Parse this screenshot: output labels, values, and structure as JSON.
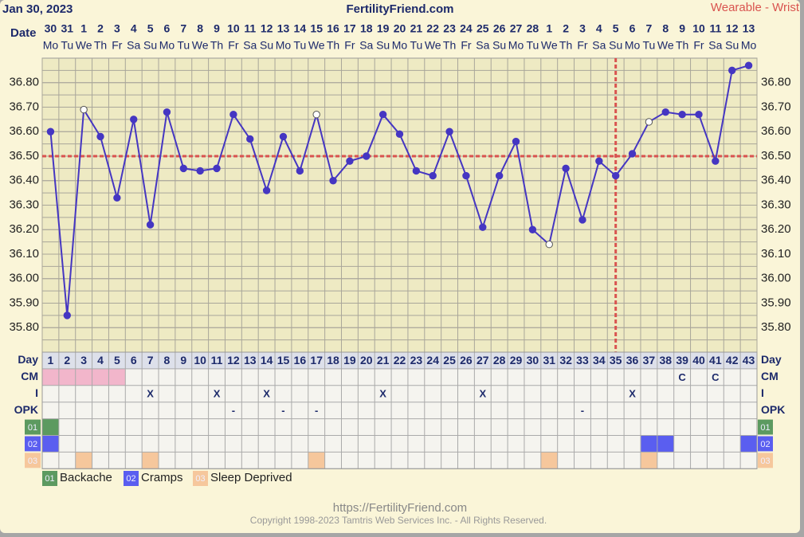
{
  "chart_data": {
    "type": "line",
    "title": "FertilityFriend.com",
    "date": "Jan 30, 2023",
    "source": "Wearable - Wrist",
    "x_label": "Date",
    "dates": [
      "30",
      "31",
      "1",
      "2",
      "3",
      "4",
      "5",
      "6",
      "7",
      "8",
      "9",
      "10",
      "11",
      "12",
      "13",
      "14",
      "15",
      "16",
      "17",
      "18",
      "19",
      "20",
      "21",
      "22",
      "23",
      "24",
      "25",
      "26",
      "27",
      "28",
      "1",
      "2",
      "3",
      "4",
      "5",
      "6",
      "7",
      "8",
      "9",
      "10",
      "11",
      "12",
      "13"
    ],
    "weekdays": [
      "Mo",
      "Tu",
      "We",
      "Th",
      "Fr",
      "Sa",
      "Su",
      "Mo",
      "Tu",
      "We",
      "Th",
      "Fr",
      "Sa",
      "Su",
      "Mo",
      "Tu",
      "We",
      "Th",
      "Fr",
      "Sa",
      "Su",
      "Mo",
      "Tu",
      "We",
      "Th",
      "Fr",
      "Sa",
      "Su",
      "Mo",
      "Tu",
      "We",
      "Th",
      "Fr",
      "Sa",
      "Su",
      "Mo",
      "Tu",
      "We",
      "Th",
      "Fr",
      "Sa",
      "Su",
      "Mo"
    ],
    "values": [
      36.6,
      35.85,
      36.69,
      36.58,
      36.33,
      36.65,
      36.22,
      36.68,
      36.45,
      36.44,
      36.45,
      36.67,
      36.57,
      36.36,
      36.58,
      36.44,
      36.67,
      36.4,
      36.48,
      36.5,
      36.67,
      36.59,
      36.44,
      36.42,
      36.6,
      36.42,
      36.21,
      36.42,
      36.56,
      36.2,
      36.14,
      36.45,
      36.24,
      36.48,
      36.42,
      36.51,
      36.64,
      36.68,
      36.67,
      36.67,
      36.48,
      36.85,
      36.87
    ],
    "hollow_points": [
      2,
      16,
      30,
      36
    ],
    "color": "#4536c2",
    "coverline": 36.5,
    "coverline_color": "#d9534f",
    "ovulation_index": 34,
    "ylim": [
      35.7,
      36.9
    ],
    "yticks": [
      {
        "value": 35.8,
        "label": "35.80"
      },
      {
        "value": 35.9,
        "label": "35.90"
      },
      {
        "value": 36.0,
        "label": "36.00"
      },
      {
        "value": 36.1,
        "label": "36.10"
      },
      {
        "value": 36.2,
        "label": "36.20"
      },
      {
        "value": 36.3,
        "label": "36.30"
      },
      {
        "value": 36.4,
        "label": "36.40"
      },
      {
        "value": 36.5,
        "label": "36.50"
      },
      {
        "value": 36.6,
        "label": "36.60"
      },
      {
        "value": 36.7,
        "label": "36.70"
      },
      {
        "value": 36.8,
        "label": "36.80"
      }
    ],
    "grid": true
  },
  "table": {
    "day_label": "Day",
    "days": [
      1,
      2,
      3,
      4,
      5,
      6,
      7,
      8,
      9,
      10,
      11,
      12,
      13,
      14,
      15,
      16,
      17,
      18,
      19,
      20,
      21,
      22,
      23,
      24,
      25,
      26,
      27,
      28,
      29,
      30,
      31,
      32,
      33,
      34,
      35,
      36,
      37,
      38,
      39,
      40,
      41,
      42,
      43
    ],
    "rows": [
      {
        "label": "CM",
        "fill_color": "#f2b6cb",
        "filled_days": [
          1,
          2,
          3,
          4,
          5
        ],
        "marks": [
          {
            "day": 39,
            "text": "C"
          },
          {
            "day": 41,
            "text": "C"
          }
        ]
      },
      {
        "label": "I",
        "marks": [
          {
            "day": 7,
            "text": "X"
          },
          {
            "day": 11,
            "text": "X"
          },
          {
            "day": 14,
            "text": "X"
          },
          {
            "day": 21,
            "text": "X"
          },
          {
            "day": 27,
            "text": "X"
          },
          {
            "day": 36,
            "text": "X"
          }
        ]
      },
      {
        "label": "OPK",
        "marks": [
          {
            "day": 12,
            "text": "-"
          },
          {
            "day": 15,
            "text": "-"
          },
          {
            "day": 17,
            "text": "-"
          },
          {
            "day": 33,
            "text": "-"
          }
        ]
      }
    ],
    "symptoms": [
      {
        "code": "01",
        "name": "Backache",
        "color": "#5c9a60",
        "days": [
          1
        ]
      },
      {
        "code": "02",
        "name": "Cramps",
        "color": "#5a5ef0",
        "days": [
          1,
          37,
          38,
          43
        ]
      },
      {
        "code": "03",
        "name": "Sleep Deprived",
        "color": "#f6c79c",
        "days": [
          3,
          7,
          17,
          31,
          37
        ]
      }
    ]
  },
  "footer": {
    "url": "https://FertilityFriend.com",
    "copyright": "Copyright 1998-2023 Tamtris Web Services Inc. - All Rights Reserved."
  }
}
